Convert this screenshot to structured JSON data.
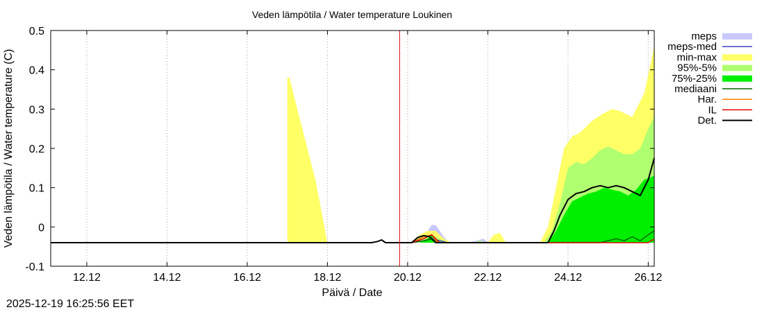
{
  "chart_data": {
    "type": "area",
    "title": "Veden lämpötila / Water temperature Loukinen",
    "xlabel": "Päivä / Date",
    "ylabel": "Veden lämpötila / Water temperature (C)",
    "xlim": [
      11.1,
      26.15
    ],
    "ylim": [
      -0.1,
      0.5
    ],
    "x_ticks": [
      {
        "x": 12,
        "label": "12.12"
      },
      {
        "x": 14,
        "label": "14.12"
      },
      {
        "x": 16,
        "label": "16.12"
      },
      {
        "x": 18,
        "label": "18.12"
      },
      {
        "x": 20,
        "label": "20.12"
      },
      {
        "x": 22,
        "label": "22.12"
      },
      {
        "x": 24,
        "label": "24.12"
      },
      {
        "x": 26,
        "label": "26.12"
      }
    ],
    "y_ticks": [
      {
        "y": 0.5,
        "label": "0.5"
      },
      {
        "y": 0.4,
        "label": "0.4"
      },
      {
        "y": 0.3,
        "label": "0.3"
      },
      {
        "y": 0.2,
        "label": "0.2"
      },
      {
        "y": 0.1,
        "label": "0.1"
      },
      {
        "y": 0.0,
        "label": "0"
      },
      {
        "y": -0.1,
        "label": "-0.1"
      }
    ],
    "forecast_start_x": 19.8,
    "legend_position": "top-right-outside",
    "legend": [
      {
        "label": "meps",
        "color": "#c8c8ff",
        "kind": "area"
      },
      {
        "label": "meps-med",
        "color": "#4040c0",
        "kind": "line"
      },
      {
        "label": "min-max",
        "color": "#ffff66",
        "kind": "area"
      },
      {
        "label": "95%-5%",
        "color": "#b0ff70",
        "kind": "area"
      },
      {
        "label": "75%-25%",
        "color": "#00ee00",
        "kind": "area"
      },
      {
        "label": "mediaani",
        "color": "#006600",
        "kind": "line"
      },
      {
        "label": "Har.",
        "color": "#ff8000",
        "kind": "line"
      },
      {
        "label": "IL",
        "color": "#e00000",
        "kind": "line"
      },
      {
        "label": "Det.",
        "color": "#000000",
        "kind": "line"
      }
    ],
    "series": [
      {
        "name": "meps",
        "kind": "band",
        "color": "#c8c8ff",
        "x": [
          20.1,
          20.3,
          20.5,
          20.6,
          20.7,
          20.8,
          20.9,
          21.0,
          21.1,
          21.5,
          21.7,
          21.9,
          22.0
        ],
        "upper": [
          -0.04,
          -0.03,
          -0.01,
          0.005,
          0.005,
          -0.01,
          -0.025,
          -0.035,
          -0.04,
          -0.04,
          -0.035,
          -0.03,
          -0.04
        ],
        "lower": [
          -0.04,
          -0.04,
          -0.04,
          -0.04,
          -0.04,
          -0.04,
          -0.04,
          -0.04,
          -0.04,
          -0.04,
          -0.04,
          -0.04,
          -0.04
        ]
      },
      {
        "name": "min-max",
        "kind": "band",
        "color": "#ffff66",
        "x": [
          17.0,
          17.05,
          17.3,
          17.7,
          18.0,
          18.05,
          20.1,
          20.3,
          20.5,
          20.7,
          20.9,
          21.1,
          22.0,
          22.15,
          22.3,
          22.45,
          23.3,
          23.5,
          23.7,
          23.9,
          24.1,
          24.3,
          24.6,
          24.9,
          25.1,
          25.3,
          25.6,
          25.9,
          26.15
        ],
        "upper": [
          0.38,
          0.38,
          0.28,
          0.12,
          -0.04,
          -0.04,
          -0.04,
          -0.02,
          -0.01,
          -0.01,
          -0.03,
          -0.04,
          -0.04,
          -0.02,
          -0.015,
          -0.04,
          -0.04,
          0.0,
          0.1,
          0.2,
          0.23,
          0.24,
          0.27,
          0.29,
          0.3,
          0.295,
          0.28,
          0.34,
          0.46
        ],
        "lower": [
          -0.04,
          -0.04,
          -0.04,
          -0.04,
          -0.04,
          -0.04,
          -0.04,
          -0.04,
          -0.04,
          -0.04,
          -0.04,
          -0.04,
          -0.04,
          -0.04,
          -0.04,
          -0.04,
          -0.04,
          -0.04,
          -0.04,
          -0.04,
          -0.04,
          -0.04,
          -0.04,
          -0.04,
          -0.04,
          -0.04,
          -0.04,
          -0.04,
          -0.04
        ]
      },
      {
        "name": "95%-5%",
        "kind": "band",
        "color": "#b0ff70",
        "x": [
          20.1,
          20.3,
          20.5,
          20.7,
          20.9,
          21.0,
          21.6,
          21.8,
          22.0,
          23.4,
          23.6,
          23.8,
          24.0,
          24.2,
          24.4,
          24.6,
          24.8,
          25.0,
          25.2,
          25.4,
          25.6,
          25.8,
          26.0,
          26.15
        ],
        "upper": [
          -0.04,
          -0.025,
          -0.02,
          -0.025,
          -0.035,
          -0.04,
          -0.04,
          -0.035,
          -0.04,
          -0.04,
          -0.01,
          0.06,
          0.15,
          0.165,
          0.16,
          0.175,
          0.195,
          0.205,
          0.195,
          0.185,
          0.185,
          0.2,
          0.25,
          0.28
        ],
        "lower": [
          -0.04,
          -0.04,
          -0.04,
          -0.04,
          -0.04,
          -0.04,
          -0.04,
          -0.04,
          -0.04,
          -0.04,
          -0.04,
          -0.04,
          -0.04,
          -0.04,
          -0.04,
          -0.04,
          -0.04,
          -0.04,
          -0.04,
          -0.04,
          -0.04,
          -0.04,
          -0.04,
          -0.04
        ]
      },
      {
        "name": "75%-25%",
        "kind": "band",
        "color": "#00ee00",
        "x": [
          20.3,
          20.5,
          20.6,
          20.7,
          20.8,
          23.5,
          23.7,
          23.9,
          24.1,
          24.3,
          24.5,
          24.7,
          24.9,
          25.1,
          25.3,
          25.5,
          25.7,
          25.9,
          26.15
        ],
        "upper": [
          -0.04,
          -0.03,
          -0.02,
          -0.03,
          -0.04,
          -0.04,
          -0.01,
          0.03,
          0.065,
          0.075,
          0.085,
          0.09,
          0.1,
          0.095,
          0.09,
          0.08,
          0.095,
          0.12,
          0.13
        ],
        "lower": [
          -0.04,
          -0.04,
          -0.04,
          -0.04,
          -0.04,
          -0.04,
          -0.04,
          -0.04,
          -0.04,
          -0.04,
          -0.04,
          -0.04,
          -0.04,
          -0.04,
          -0.04,
          -0.04,
          -0.04,
          -0.04,
          -0.04
        ]
      },
      {
        "name": "meps-med",
        "kind": "line",
        "color": "#4040c0",
        "x": [
          20.1,
          20.4,
          20.6,
          20.8,
          21.0
        ],
        "y": [
          -0.04,
          -0.035,
          -0.03,
          -0.035,
          -0.04
        ]
      },
      {
        "name": "mediaani",
        "kind": "line",
        "color": "#006600",
        "x": [
          20.1,
          20.4,
          20.6,
          20.75,
          24.8,
          25.0,
          25.2,
          25.4,
          25.6,
          25.8,
          26.0,
          26.15
        ],
        "y": [
          -0.04,
          -0.035,
          -0.03,
          -0.04,
          -0.04,
          -0.035,
          -0.03,
          -0.035,
          -0.025,
          -0.035,
          -0.02,
          -0.01
        ]
      },
      {
        "name": "Har.",
        "kind": "line",
        "color": "#ff8000",
        "x": [
          20.1,
          20.4,
          20.6,
          20.75
        ],
        "y": [
          -0.04,
          -0.025,
          -0.02,
          -0.04
        ]
      },
      {
        "name": "IL",
        "kind": "line",
        "color": "#e00000",
        "x": [
          20.1,
          20.4,
          20.6,
          20.8,
          26.0,
          26.1,
          26.15
        ],
        "y": [
          -0.04,
          -0.03,
          -0.02,
          -0.04,
          -0.04,
          -0.033,
          -0.033
        ]
      },
      {
        "name": "Det.",
        "kind": "line",
        "color": "#000000",
        "x": [
          11.1,
          19.1,
          19.25,
          19.35,
          19.45,
          19.6,
          20.1,
          20.25,
          20.4,
          20.55,
          20.7,
          23.5,
          23.65,
          23.8,
          24.0,
          24.2,
          24.4,
          24.6,
          24.8,
          25.0,
          25.2,
          25.4,
          25.6,
          25.8,
          26.0,
          26.15
        ],
        "y": [
          -0.04,
          -0.04,
          -0.037,
          -0.033,
          -0.04,
          -0.04,
          -0.04,
          -0.027,
          -0.022,
          -0.025,
          -0.04,
          -0.04,
          -0.01,
          0.03,
          0.07,
          0.085,
          0.09,
          0.1,
          0.105,
          0.1,
          0.105,
          0.1,
          0.09,
          0.08,
          0.12,
          0.175
        ]
      }
    ]
  },
  "footer": {
    "timestamp": "2025-12-19 16:25:56 EET"
  }
}
